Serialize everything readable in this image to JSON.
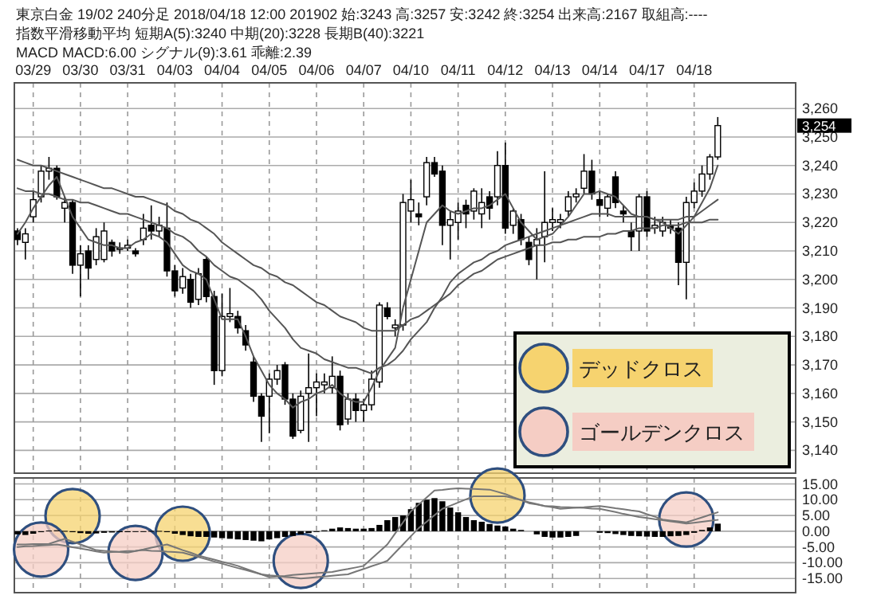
{
  "chart_data": [
    {
      "type": "candlestick",
      "title": "東京白金 19/02 240分足 2018/04/18 12:00 201902 始:3243 高:3257 安:3242 終:3254 出来高:2167 取組高:----",
      "subtitle": "指数平滑移動平均 短期A(5):3240 中期(20):3228 長期B(40):3221",
      "categories": [
        null,
        null,
        "03/29",
        null,
        null,
        null,
        null,
        null,
        "03/30",
        null,
        null,
        null,
        null,
        null,
        "03/31",
        null,
        null,
        null,
        null,
        null,
        "04/03",
        null,
        null,
        null,
        null,
        null,
        "04/04",
        null,
        null,
        null,
        null,
        null,
        "04/05",
        null,
        null,
        null,
        null,
        null,
        "04/06",
        null,
        null,
        null,
        null,
        null,
        "04/07",
        null,
        null,
        null,
        null,
        null,
        "04/10",
        null,
        null,
        null,
        null,
        null,
        "04/11",
        null,
        null,
        null,
        null,
        null,
        "04/12",
        null,
        null,
        null,
        null,
        null,
        "04/13",
        null,
        null,
        null,
        null,
        null,
        "04/14",
        null,
        null,
        null,
        null,
        null,
        "04/17",
        null,
        null,
        null,
        null,
        null,
        "04/18",
        null,
        null,
        null
      ],
      "ohlc": [
        [
          3217,
          3218,
          3212,
          3214
        ],
        [
          3213,
          3218,
          3207,
          3216
        ],
        [
          3222,
          3231,
          3220,
          3228
        ],
        [
          3229,
          3240,
          3227,
          3238
        ],
        [
          3238,
          3243,
          3235,
          3239
        ],
        [
          3239,
          3240,
          3228,
          3229
        ],
        [
          3225,
          3229,
          3220,
          3227
        ],
        [
          3227,
          3228,
          3202,
          3205
        ],
        [
          3205,
          3212,
          3194,
          3209
        ],
        [
          3210,
          3212,
          3200,
          3204
        ],
        [
          3207,
          3218,
          3205,
          3215
        ],
        [
          3207,
          3220,
          3206,
          3217
        ],
        [
          3213,
          3214,
          3208,
          3210
        ],
        [
          3211,
          3213,
          3209,
          3211
        ],
        [
          3211,
          3214,
          3210,
          3212
        ],
        [
          3210,
          3211,
          3208,
          3209
        ],
        [
          3214,
          3223,
          3212,
          3218
        ],
        [
          3219,
          3226,
          3214,
          3217
        ],
        [
          3217,
          3222,
          3215,
          3219
        ],
        [
          3218,
          3227,
          3201,
          3203
        ],
        [
          3203,
          3205,
          3194,
          3196
        ],
        [
          3197,
          3204,
          3195,
          3201
        ],
        [
          3200,
          3202,
          3190,
          3192
        ],
        [
          3193,
          3204,
          3191,
          3202
        ],
        [
          3207,
          3208,
          3192,
          3194
        ],
        [
          3194,
          3196,
          3163,
          3168
        ],
        [
          3168,
          3195,
          3166,
          3187
        ],
        [
          3187,
          3197,
          3185,
          3188
        ],
        [
          3187,
          3189,
          3181,
          3183
        ],
        [
          3182,
          3184,
          3175,
          3177
        ],
        [
          3171,
          3173,
          3157,
          3159
        ],
        [
          3159,
          3160,
          3143,
          3152
        ],
        [
          3159,
          3167,
          3146,
          3165
        ],
        [
          3165,
          3170,
          3163,
          3168
        ],
        [
          3170,
          3171,
          3156,
          3158
        ],
        [
          3158,
          3160,
          3144,
          3145
        ],
        [
          3147,
          3161,
          3146,
          3159
        ],
        [
          3160,
          3174,
          3143,
          3162
        ],
        [
          3162,
          3167,
          3152,
          3164
        ],
        [
          3163,
          3167,
          3160,
          3164
        ],
        [
          3162,
          3173,
          3160,
          3166
        ],
        [
          3166,
          3168,
          3147,
          3149
        ],
        [
          3151,
          3160,
          3149,
          3158
        ],
        [
          3158,
          3160,
          3150,
          3154
        ],
        [
          3154,
          3158,
          3150,
          3156
        ],
        [
          3156,
          3168,
          3154,
          3165
        ],
        [
          3164,
          3192,
          3162,
          3191
        ],
        [
          3190,
          3192,
          3186,
          3187
        ],
        [
          3183,
          3186,
          3180,
          3184
        ],
        [
          3184,
          3230,
          3182,
          3227
        ],
        [
          3224,
          3235,
          3220,
          3228
        ],
        [
          3223,
          3227,
          3219,
          3222
        ],
        [
          3229,
          3243,
          3226,
          3241
        ],
        [
          3241,
          3243,
          3236,
          3237
        ],
        [
          3238,
          3240,
          3212,
          3219
        ],
        [
          3219,
          3224,
          3207,
          3221
        ],
        [
          3220,
          3227,
          3214,
          3224
        ],
        [
          3226,
          3228,
          3218,
          3223
        ],
        [
          3224,
          3232,
          3221,
          3231
        ],
        [
          3223,
          3232,
          3218,
          3227
        ],
        [
          3229,
          3231,
          3221,
          3225
        ],
        [
          3229,
          3245,
          3226,
          3240
        ],
        [
          3240,
          3248,
          3216,
          3218
        ],
        [
          3219,
          3225,
          3216,
          3224
        ],
        [
          3221,
          3223,
          3212,
          3214
        ],
        [
          3213,
          3215,
          3205,
          3207
        ],
        [
          3212,
          3218,
          3200,
          3214
        ],
        [
          3215,
          3238,
          3206,
          3220
        ],
        [
          3220,
          3225,
          3217,
          3221
        ],
        [
          3220,
          3223,
          3218,
          3221
        ],
        [
          3224,
          3231,
          3222,
          3229
        ],
        [
          3229,
          3232,
          3227,
          3230
        ],
        [
          3232,
          3244,
          3230,
          3238
        ],
        [
          3238,
          3242,
          3228,
          3230
        ],
        [
          3228,
          3231,
          3222,
          3226
        ],
        [
          3225,
          3230,
          3222,
          3229
        ],
        [
          3236,
          3238,
          3225,
          3227
        ],
        [
          3224,
          3226,
          3220,
          3223
        ],
        [
          3217,
          3220,
          3210,
          3215
        ],
        [
          3217,
          3230,
          3210,
          3229
        ],
        [
          3229,
          3231,
          3215,
          3217
        ],
        [
          3218,
          3222,
          3216,
          3219
        ],
        [
          3217,
          3222,
          3215,
          3220
        ],
        [
          3219,
          3221,
          3216,
          3218
        ],
        [
          3218,
          3220,
          3198,
          3206
        ],
        [
          3206,
          3229,
          3193,
          3227
        ],
        [
          3227,
          3234,
          3225,
          3231
        ],
        [
          3231,
          3240,
          3229,
          3237
        ],
        [
          3237,
          3244,
          3235,
          3243
        ],
        [
          3243,
          3257,
          3242,
          3254
        ]
      ],
      "series": [
        {
          "type": "line",
          "color": "#555555",
          "values": [
            3216,
            3220,
            3225,
            3229,
            3233,
            3236,
            3229,
            3222,
            3218,
            3214,
            3213,
            3212,
            3212,
            3211,
            3211,
            3213,
            3214,
            3216,
            3215,
            3213,
            3209,
            3205,
            3203,
            3202,
            3200,
            3193,
            3186,
            3186,
            3186,
            3180,
            3173,
            3168,
            3163,
            3160,
            3158,
            3155,
            3157,
            3158,
            3160,
            3161,
            3163,
            3160,
            3158,
            3157,
            3157,
            3162,
            3168,
            3172,
            3176,
            3190,
            3200,
            3210,
            3220,
            3223,
            3226,
            3224,
            3223,
            3224,
            3225,
            3225,
            3226,
            3228,
            3230,
            3225,
            3220,
            3217,
            3214,
            3215,
            3216,
            3219,
            3222,
            3226,
            3230,
            3230,
            3231,
            3230,
            3229,
            3226,
            3223,
            3222,
            3222,
            3221,
            3220,
            3218,
            3216,
            3219,
            3222,
            3227,
            3232,
            3240
          ]
        },
        {
          "type": "line",
          "color": "#555555",
          "values": [
            3232,
            3231,
            3231,
            3230,
            3230,
            3229,
            3228,
            3228,
            3227,
            3227,
            3226,
            3225,
            3224,
            3223,
            3223,
            3222,
            3221,
            3220,
            3219,
            3218,
            3216,
            3215,
            3213,
            3210,
            3208,
            3205,
            3203,
            3201,
            3200,
            3198,
            3196,
            3193,
            3189,
            3186,
            3183,
            3179,
            3176,
            3175,
            3174,
            3172,
            3171,
            3170,
            3169,
            3169,
            3168,
            3167,
            3169,
            3170,
            3172,
            3175,
            3179,
            3182,
            3185,
            3190,
            3194,
            3199,
            3202,
            3204,
            3206,
            3207,
            3209,
            3210,
            3212,
            3213,
            3214,
            3215,
            3216,
            3217,
            3218,
            3219,
            3220,
            3221,
            3222,
            3223,
            3223,
            3223,
            3222,
            3222,
            3222,
            3222,
            3222,
            3221,
            3221,
            3221,
            3221,
            3222,
            3222,
            3224,
            3226,
            3228
          ]
        },
        {
          "type": "line",
          "color": "#555555",
          "values": [
            3242,
            3241,
            3240,
            3240,
            3239,
            3238,
            3237,
            3236,
            3235,
            3234,
            3233,
            3232,
            3232,
            3231,
            3230,
            3229,
            3229,
            3228,
            3227,
            3226,
            3224,
            3223,
            3221,
            3220,
            3218,
            3216,
            3213,
            3211,
            3209,
            3207,
            3205,
            3204,
            3202,
            3201,
            3199,
            3198,
            3196,
            3194,
            3192,
            3191,
            3189,
            3187,
            3186,
            3185,
            3183,
            3182,
            3182,
            3182,
            3182,
            3184,
            3186,
            3187,
            3189,
            3191,
            3193,
            3195,
            3198,
            3200,
            3202,
            3203,
            3205,
            3207,
            3208,
            3209,
            3210,
            3211,
            3212,
            3212,
            3213,
            3213,
            3214,
            3214,
            3215,
            3215,
            3215,
            3216,
            3216,
            3217,
            3217,
            3218,
            3218,
            3218,
            3219,
            3219,
            3219,
            3220,
            3220,
            3220,
            3221,
            3221
          ]
        }
      ],
      "ylim": [
        3132,
        3269
      ],
      "yticks": [
        {
          "value": 3140,
          "label": "3,140"
        },
        {
          "value": 3150,
          "label": "3,150"
        },
        {
          "value": 3160,
          "label": "3,160"
        },
        {
          "value": 3170,
          "label": "3,170"
        },
        {
          "value": 3180,
          "label": "3,180"
        },
        {
          "value": 3190,
          "label": "3,190"
        },
        {
          "value": 3200,
          "label": "3,200"
        },
        {
          "value": 3210,
          "label": "3,210"
        },
        {
          "value": 3220,
          "label": "3,220"
        },
        {
          "value": 3230,
          "label": "3,230"
        },
        {
          "value": 3240,
          "label": "3,240"
        },
        {
          "value": 3250,
          "label": "3,250"
        },
        {
          "value": 3260,
          "label": "3,260"
        }
      ],
      "grid": true,
      "annotations": [
        "3,254",
        "MACD MACD:6.00 シグナル(9):3.61 乖離:2.39"
      ]
    },
    {
      "type": "bar",
      "categories": [
        null,
        null,
        null,
        null,
        null,
        null,
        null,
        null,
        null,
        null,
        null,
        null,
        null,
        null,
        null,
        null,
        null,
        null,
        null,
        null,
        null,
        null,
        null,
        null,
        null,
        null,
        null,
        null,
        null,
        null,
        null,
        null,
        null,
        null,
        null,
        null,
        null,
        null,
        null,
        null,
        null,
        null,
        null,
        null,
        null,
        null,
        null,
        null,
        null,
        null,
        null,
        null,
        null,
        null,
        null,
        null,
        null,
        null,
        null,
        null,
        null,
        null,
        null,
        null,
        null,
        null,
        null,
        null,
        null,
        null,
        null,
        null,
        null,
        null,
        null,
        null,
        null,
        null,
        null,
        null,
        null,
        null,
        null,
        null,
        null,
        null,
        null,
        null,
        null,
        null
      ],
      "series": [
        {
          "type": "bar",
          "color": "#000000",
          "values": [
            -1,
            -1.2,
            -0.8,
            -0.3,
            0.2,
            0.3,
            0.1,
            -0.3,
            -0.6,
            -0.8,
            -0.7,
            -0.5,
            -0.4,
            -0.3,
            -0.3,
            -0.2,
            -0.1,
            0.1,
            0.1,
            -0.3,
            -0.8,
            -1.2,
            -1.6,
            -1.8,
            -1.8,
            -2,
            -2.2,
            -2.4,
            -2.6,
            -2.8,
            -3,
            -3.2,
            -2.6,
            -2.2,
            -1.8,
            -1.5,
            -1,
            -0.6,
            -0.2,
            0.3,
            0.8,
            1.2,
            1,
            0.8,
            0.8,
            1,
            2,
            3.5,
            4.5,
            5,
            7,
            9,
            10,
            10.5,
            9.5,
            7.5,
            6,
            4.5,
            3.5,
            3,
            2.3,
            1.8,
            1.5,
            0.8,
            0.4,
            null,
            -1,
            -1.8,
            -2,
            -2,
            -1.8,
            -1.5,
            null,
            null,
            -0.5,
            -0.6,
            -0.9,
            -1.2,
            -1.5,
            -1.6,
            -1.7,
            -1.8,
            -1.8,
            -1.6,
            -1.5,
            -1.2,
            -0.5,
            0.4,
            1.2,
            2.4
          ]
        },
        {
          "type": "line",
          "color": "#777777",
          "values": [
            -4.2,
            -4.2,
            -4.1,
            -4.1,
            -4,
            -3.2,
            -2.4,
            -3.3,
            -4.2,
            -5.1,
            -6,
            -6.2,
            -6.4,
            -6.6,
            -6.8,
            -6.3,
            -5.8,
            -5.2,
            -4.7,
            -4.2,
            -5.1,
            -6,
            -6.8,
            -7.7,
            -8.4,
            -9,
            -9.7,
            -10.3,
            -11,
            -11.9,
            -12.8,
            -13.7,
            -14.6,
            -14.4,
            -14.2,
            -13.9,
            -13.7,
            -13.5,
            -13.3,
            -13.1,
            -12.9,
            -12.4,
            -12,
            -11.5,
            -11,
            -8.7,
            -6.5,
            -4.2,
            -0.7,
            2.8,
            6.3,
            8.5,
            10.7,
            12.9,
            13.1,
            13.4,
            13.6,
            13.5,
            13.4,
            13.3,
            13.2,
            12.5,
            11.8,
            10.8,
            9.9,
            8.9,
            8.5,
            8,
            7.6,
            7.1,
            7.3,
            7.5,
            7.6,
            7.8,
            8,
            7.7,
            7.3,
            7,
            6.6,
            6.3,
            5.4,
            4.6,
            3.7,
            3.4,
            3.1,
            2.8,
            3.6,
            4.4,
            5.2,
            6
          ]
        },
        {
          "type": "line",
          "color": "#777777",
          "values": [
            -5,
            -4.8,
            -4.7,
            -4.5,
            -4.4,
            -4.2,
            -4.6,
            -5.1,
            -5.5,
            -5.9,
            -6.4,
            -6.8,
            -6.6,
            -6.5,
            -6.3,
            -6.2,
            -6,
            -6.2,
            -6.3,
            -6.5,
            -6.6,
            -6.8,
            -7.5,
            -8.2,
            -8.9,
            -9.6,
            -10.3,
            -11,
            -11.7,
            -12.3,
            -13,
            -13.7,
            -14,
            -14.2,
            -14.5,
            -14.7,
            -15,
            -14.8,
            -14.6,
            -14.4,
            -14.1,
            -13.9,
            -13.7,
            -12.8,
            -12,
            -11.1,
            -10.3,
            -9.4,
            -6.8,
            -4.2,
            -1.6,
            1,
            3,
            5.1,
            7.1,
            8.1,
            9.1,
            10.1,
            11.1,
            11.1,
            11.1,
            11.1,
            11.1,
            10.5,
            9.9,
            9.2,
            8.6,
            8,
            7.9,
            7.7,
            7.6,
            7.5,
            7.4,
            7.2,
            7.1,
            6.6,
            6.1,
            5.5,
            5,
            4.5,
            4.2,
            3.8,
            3.5,
            3.1,
            2.8,
            2.4,
            2.7,
            3,
            3.3,
            3.6
          ]
        },
        {
          "type": "scatter",
          "name": "デッドクロス",
          "color": "#f6d36f",
          "marker": "circle",
          "values": [
            null,
            null,
            null,
            null,
            null,
            null,
            null,
            4.8,
            null,
            null,
            null,
            null,
            null,
            null,
            null,
            null,
            null,
            null,
            null,
            null,
            null,
            -0.8,
            null,
            null,
            null,
            null,
            null,
            null,
            null,
            null,
            null,
            null,
            null,
            null,
            null,
            null,
            null,
            null,
            null,
            null,
            null,
            null,
            null,
            null,
            null,
            null,
            null,
            null,
            null,
            null,
            null,
            null,
            null,
            null,
            null,
            null,
            null,
            null,
            null,
            null,
            null,
            11.3,
            null,
            null,
            null,
            null,
            null,
            null,
            null,
            null,
            null,
            null,
            null,
            null,
            null,
            null,
            null,
            null,
            null,
            null,
            null,
            null,
            null,
            null,
            null,
            null,
            null,
            null,
            null,
            null
          ]
        },
        {
          "type": "scatter",
          "name": "ゴールデンクロス",
          "color": "#f5cdc4",
          "marker": "circle",
          "values": [
            null,
            null,
            null,
            -5.8,
            null,
            null,
            null,
            null,
            null,
            null,
            null,
            null,
            null,
            null,
            null,
            -6.9,
            null,
            null,
            null,
            null,
            null,
            null,
            null,
            null,
            null,
            null,
            null,
            null,
            null,
            null,
            null,
            null,
            null,
            null,
            null,
            null,
            -9.4,
            null,
            null,
            null,
            null,
            null,
            null,
            null,
            null,
            null,
            null,
            null,
            null,
            null,
            null,
            null,
            null,
            null,
            null,
            null,
            null,
            null,
            null,
            null,
            null,
            null,
            null,
            null,
            null,
            null,
            null,
            null,
            null,
            null,
            null,
            null,
            null,
            null,
            null,
            null,
            null,
            null,
            null,
            null,
            null,
            null,
            null,
            null,
            null,
            3.7,
            null,
            null,
            null,
            null
          ]
        }
      ],
      "ylim": [
        -19.5,
        16.9
      ],
      "yticks": [
        {
          "value": -15,
          "label": "-15.00"
        },
        {
          "value": -10,
          "label": "-10.00"
        },
        {
          "value": -5,
          "label": "-5.00"
        },
        {
          "value": 0,
          "label": "0.00"
        },
        {
          "value": 5,
          "label": "5.00"
        },
        {
          "value": 10,
          "label": "10.00"
        },
        {
          "value": 15,
          "label": "15.00"
        }
      ],
      "grid": true,
      "tick_labels": "y",
      "legend": "top right"
    }
  ]
}
